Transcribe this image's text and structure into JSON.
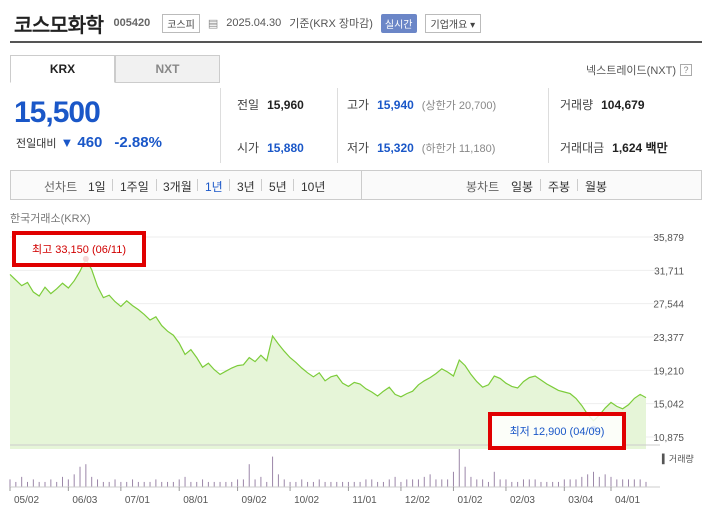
{
  "header": {
    "name": "코스모화학",
    "code": "005420",
    "market": "코스피",
    "date": "2025.04.30",
    "basis": "기준(KRX 장마감)",
    "realtime": "실시간",
    "company_info": "기업개요"
  },
  "tabs": [
    {
      "label": "KRX",
      "active": true
    },
    {
      "label": "NXT",
      "active": false
    }
  ],
  "nextrade": "넥스트레이드(NXT)",
  "price": {
    "current": "15,500",
    "change_label": "전일대비",
    "change_amount": "460",
    "change_pct": "-2.88%",
    "direction": "down"
  },
  "stats": {
    "prev_close": {
      "label": "전일",
      "value": "15,960"
    },
    "open": {
      "label": "시가",
      "value": "15,880"
    },
    "high": {
      "label": "고가",
      "value": "15,940",
      "sub": "(상한가 20,700)"
    },
    "low": {
      "label": "저가",
      "value": "15,320",
      "sub": "(하한가 11,180)"
    },
    "volume": {
      "label": "거래량",
      "value": "104,679"
    },
    "amount": {
      "label": "거래대금",
      "value": "1,624 백만"
    }
  },
  "periods": {
    "line_label": "선차트",
    "line_items": [
      "1일",
      "1주일",
      "3개월",
      "1년",
      "3년",
      "5년",
      "10년"
    ],
    "selected": "1년",
    "candle_label": "봉차트",
    "candle_items": [
      "일봉",
      "주봉",
      "월봉"
    ]
  },
  "source_label": "한국거래소(KRX)",
  "annotations": {
    "high": "최고 33,150 (06/11)",
    "low": "최저 12,900 (04/09)"
  },
  "volume_label": "거래량",
  "colors": {
    "up": "#d10000",
    "down": "#1a57c8",
    "line": "#7ccc3a",
    "fill": "#e6f5d8"
  },
  "chart_data": {
    "type": "area",
    "y_ticks": [
      "35,879",
      "31,711",
      "27,544",
      "23,377",
      "19,210",
      "15,042",
      "10,875"
    ],
    "ylim": [
      10875,
      35879
    ],
    "x_ticks": [
      "05/02",
      "06/03",
      "07/01",
      "08/01",
      "09/02",
      "10/02",
      "11/01",
      "12/02",
      "01/02",
      "02/03",
      "03/04",
      "04/01"
    ],
    "series": [
      {
        "values": [
          31200,
          30500,
          29800,
          30200,
          29000,
          28500,
          29600,
          28800,
          29400,
          30100,
          29500,
          30400,
          31600,
          33150,
          31800,
          29700,
          28300,
          28600,
          27800,
          27200,
          27900,
          27300,
          26800,
          26200,
          25500,
          25900,
          24800,
          24100,
          23600,
          22600,
          21200,
          21800,
          20800,
          19600,
          20100,
          19300,
          18700,
          19100,
          19500,
          19800,
          19900,
          20800,
          20300,
          21100,
          20400,
          23500,
          22500,
          21600,
          20800,
          20200,
          19500,
          18900,
          18400,
          18900,
          17900,
          18400,
          18600,
          17600,
          17200,
          17700,
          17500,
          16900,
          16500,
          16000,
          16600,
          17100,
          16200,
          15900,
          16300,
          16600,
          17400,
          17900,
          18300,
          18800,
          19400,
          19000,
          18500,
          20500,
          19800,
          18700,
          17800,
          17100,
          17400,
          18500,
          18200,
          17600,
          17200,
          17000,
          17800,
          18300,
          18500,
          18000,
          17500,
          17100,
          16700,
          16500,
          16300,
          15700,
          14800,
          13700,
          12900,
          13600,
          14500,
          15200,
          14700,
          14400,
          14900,
          15700,
          16200,
          15800
        ],
        "volumes": [
          3,
          2,
          4,
          2,
          3,
          2,
          2,
          3,
          2,
          4,
          3,
          5,
          8,
          9,
          4,
          3,
          2,
          2,
          3,
          2,
          2,
          3,
          2,
          2,
          2,
          3,
          2,
          2,
          2,
          3,
          4,
          2,
          2,
          3,
          2,
          2,
          2,
          2,
          2,
          3,
          3,
          9,
          3,
          4,
          2,
          12,
          5,
          3,
          2,
          2,
          3,
          2,
          2,
          3,
          2,
          2,
          2,
          2,
          2,
          2,
          2,
          3,
          3,
          2,
          2,
          3,
          4,
          2,
          3,
          3,
          3,
          4,
          5,
          3,
          3,
          3,
          6,
          15,
          8,
          4,
          3,
          3,
          2,
          6,
          3,
          3,
          2,
          2,
          3,
          3,
          3,
          2,
          2,
          2,
          2,
          3,
          3,
          3,
          4,
          5,
          6,
          4,
          5,
          4,
          3,
          3,
          3,
          3,
          3,
          2
        ],
        "high_index": 13,
        "low_index": 100
      }
    ],
    "x_tick_indices": [
      0,
      10,
      19,
      29,
      39,
      48,
      58,
      67,
      76,
      85,
      95,
      103
    ]
  }
}
